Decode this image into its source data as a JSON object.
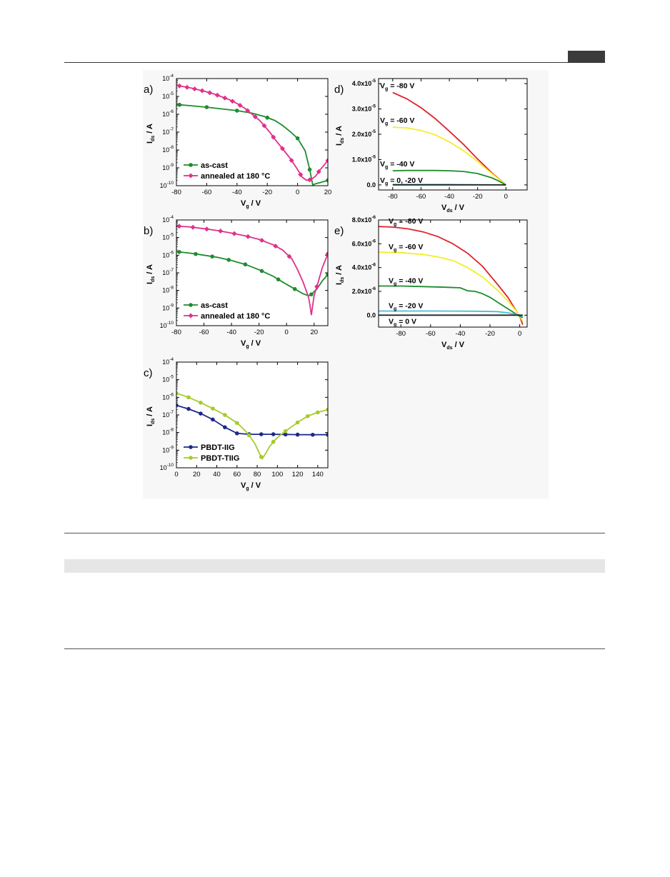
{
  "charts": {
    "a": {
      "type": "line",
      "panel_label": "a)",
      "yscale": "log",
      "xlim": [
        -80,
        20
      ],
      "ylim_exp": [
        -10,
        -4
      ],
      "xticks": [
        -80,
        -60,
        -40,
        -20,
        0,
        20
      ],
      "ylabel_main": "I",
      "ylabel_sub": "ds",
      "ylabel_tail": " / A",
      "xlabel_main": "V",
      "xlabel_sub": "g",
      "xlabel_tail": " / V",
      "legend": {
        "position": "bottom-left",
        "entries": [
          "as-cast",
          "annealed at 180 °C"
        ]
      },
      "series": [
        {
          "name": "as-cast",
          "color": "#1e8c2e",
          "marker": "circle",
          "x": [
            -80,
            -70,
            -60,
            -50,
            -40,
            -30,
            -22,
            -15,
            -10,
            -5,
            0,
            5,
            8,
            10,
            12,
            15,
            20
          ],
          "y": [
            3.5e-06,
            3e-06,
            2.5e-06,
            2e-06,
            1.6e-06,
            1.15e-06,
            7.5e-07,
            4.5e-07,
            2.4e-07,
            1.1e-07,
            4.5e-08,
            9e-09,
            8e-10,
            1.1e-10,
            1.3e-10,
            1.5e-10,
            2e-10
          ],
          "markers_x": [
            -78,
            -60,
            -40,
            -20,
            0,
            8,
            20
          ]
        },
        {
          "name": "annealed at 180 °C",
          "color": "#e0318a",
          "marker": "diamond",
          "x": [
            -80,
            -75,
            -70,
            -65,
            -60,
            -55,
            -50,
            -45,
            -40,
            -35,
            -30,
            -25,
            -22,
            -18,
            -15,
            -10,
            -5,
            0,
            3,
            6,
            9,
            12,
            15,
            18,
            20
          ],
          "y": [
            4.2e-05,
            3.5e-05,
            2.9e-05,
            2.3e-05,
            1.8e-05,
            1.35e-05,
            9.5e-06,
            6.5e-06,
            4e-06,
            2.2e-06,
            1e-06,
            4.5e-07,
            2.3e-07,
            9e-08,
            4e-08,
            1.2e-08,
            3.5e-09,
            8e-10,
            3e-10,
            2e-10,
            2.2e-10,
            3.5e-10,
            8e-10,
            1.6e-09,
            2.6e-09
          ],
          "markers_x": [
            -78,
            -73,
            -68,
            -63,
            -58,
            -53,
            -48,
            -43,
            -38,
            -33,
            -28,
            -22,
            -16,
            -10,
            -4,
            2,
            8,
            14,
            20
          ]
        }
      ]
    },
    "b": {
      "type": "line",
      "panel_label": "b)",
      "yscale": "log",
      "xlim": [
        -80,
        30
      ],
      "ylim_exp": [
        -10,
        -4
      ],
      "xticks": [
        -80,
        -60,
        -40,
        -20,
        0,
        20
      ],
      "ylabel_main": "I",
      "ylabel_sub": "ds",
      "ylabel_tail": " / A",
      "xlabel_main": "V",
      "xlabel_sub": "g",
      "xlabel_tail": " / V",
      "legend": {
        "position": "bottom-left",
        "entries": [
          "as-cast",
          "annealed at 180 °C"
        ]
      },
      "series": [
        {
          "name": "as-cast",
          "color": "#1e8c2e",
          "marker": "circle",
          "x": [
            -80,
            -70,
            -60,
            -50,
            -40,
            -30,
            -20,
            -10,
            0,
            6,
            12,
            16,
            18,
            22,
            26,
            30
          ],
          "y": [
            1.6e-06,
            1.3e-06,
            1e-06,
            7.5e-07,
            5e-07,
            3e-07,
            1.5e-07,
            6.5e-08,
            2.2e-08,
            1.2e-08,
            6.5e-09,
            5e-09,
            6e-09,
            1.2e-08,
            3.5e-08,
            8e-08
          ],
          "markers_x": [
            -78,
            -66,
            -54,
            -42,
            -30,
            -18,
            -6,
            6,
            18,
            30
          ]
        },
        {
          "name": "annealed at 180 °C",
          "color": "#e0318a",
          "marker": "diamond",
          "x": [
            -80,
            -70,
            -60,
            -50,
            -40,
            -30,
            -20,
            -10,
            -3,
            4,
            8,
            12,
            14,
            16,
            17,
            18,
            20,
            23,
            26,
            30
          ],
          "y": [
            4.5e-05,
            4e-05,
            3.2e-05,
            2.5e-05,
            1.8e-05,
            1.25e-05,
            8e-06,
            4e-06,
            2e-06,
            6e-07,
            1.5e-07,
            3e-08,
            1.1e-08,
            4e-09,
            1.5e-09,
            4e-10,
            5e-09,
            3e-08,
            2e-07,
            1.2e-06
          ],
          "markers_x": [
            -78,
            -68,
            -58,
            -48,
            -38,
            -28,
            -18,
            -8,
            2,
            22,
            30
          ]
        }
      ]
    },
    "c": {
      "type": "line",
      "panel_label": "c)",
      "yscale": "log",
      "xlim": [
        0,
        150
      ],
      "ylim_exp": [
        -10,
        -4
      ],
      "xticks": [
        0,
        20,
        40,
        60,
        80,
        100,
        120,
        140
      ],
      "ylabel_main": "I",
      "ylabel_sub": "ds",
      "ylabel_tail": " / A",
      "xlabel_main": "V",
      "xlabel_sub": "g",
      "xlabel_tail": " / V",
      "legend": {
        "position": "bottom-left",
        "entries": [
          "PBDT-IIG",
          "PBDT-TIIG"
        ]
      },
      "series": [
        {
          "name": "PBDT-IIG",
          "color": "#1b2a8a",
          "marker": "circle",
          "x": [
            0,
            12,
            24,
            36,
            48,
            60,
            72,
            84,
            96,
            108,
            120,
            135,
            150
          ],
          "y": [
            3.5e-07,
            2.2e-07,
            1.2e-07,
            5.5e-08,
            2e-08,
            9e-09,
            8e-09,
            8e-09,
            8e-09,
            7.8e-09,
            7.6e-09,
            7.5e-09,
            7.5e-09
          ],
          "markers_x": [
            0,
            12,
            24,
            36,
            48,
            60,
            72,
            84,
            96,
            108,
            120,
            135,
            150
          ]
        },
        {
          "name": "PBDT-TIIG",
          "color": "#a4cc2a",
          "marker": "circle",
          "x": [
            0,
            12,
            24,
            36,
            48,
            60,
            66,
            72,
            78,
            82,
            85,
            88,
            92,
            97,
            102,
            108,
            115,
            122,
            130,
            140,
            150
          ],
          "y": [
            1.7e-06,
            1e-06,
            5e-07,
            2.3e-07,
            1e-07,
            3.5e-08,
            1.7e-08,
            7e-09,
            2.2e-09,
            7e-10,
            3.2e-10,
            6e-10,
            1.5e-09,
            3.5e-09,
            6.5e-09,
            1.2e-08,
            2.3e-08,
            4.5e-08,
            8.5e-08,
            1.4e-07,
            2e-07
          ],
          "markers_x": [
            0,
            12,
            24,
            36,
            48,
            60,
            72,
            84,
            96,
            108,
            120,
            130,
            140,
            150
          ]
        }
      ]
    },
    "d": {
      "type": "line",
      "panel_label": "d)",
      "yscale": "linear",
      "xlim": [
        -90,
        15
      ],
      "ylim": [
        -2e-06,
        4.2e-05
      ],
      "xticks": [
        -80,
        -60,
        -40,
        -20,
        0
      ],
      "yticks": [
        0,
        1e-05,
        2e-05,
        3e-05,
        4e-05
      ],
      "ytick_labels": [
        {
          "mant": "0.0",
          "exp": ""
        },
        {
          "mant": "1.0x10",
          "exp": "-5"
        },
        {
          "mant": "2.0x10",
          "exp": "-5"
        },
        {
          "mant": "3.0x10",
          "exp": "-5"
        },
        {
          "mant": "4.0x10",
          "exp": "-5"
        }
      ],
      "ylabel_main": "I",
      "ylabel_sub": "ds",
      "ylabel_tail": " / A",
      "xlabel_main": "V",
      "xlabel_sub": "ds",
      "xlabel_tail": " / V",
      "series": [
        {
          "name": "V_g = -80 V",
          "color": "#e0242a",
          "x": [
            -80,
            -70,
            -60,
            -50,
            -40,
            -30,
            -20,
            -10,
            0
          ],
          "y": [
            3.65e-05,
            3.4e-05,
            3.05e-05,
            2.62e-05,
            2.12e-05,
            1.6e-05,
            1.02e-05,
            4.8e-06,
            0
          ],
          "label": {
            "main": "V",
            "sub": "g",
            "tail": " = -80 V"
          }
        },
        {
          "name": "V_g = -60 V",
          "color": "#f2ee2a",
          "x": [
            -80,
            -70,
            -60,
            -50,
            -40,
            -30,
            -20,
            -10,
            0
          ],
          "y": [
            2.28e-05,
            2.25e-05,
            2.15e-05,
            1.98e-05,
            1.7e-05,
            1.35e-05,
            9.2e-06,
            4.5e-06,
            0
          ],
          "label": {
            "main": "V",
            "sub": "g",
            "tail": " = -60 V"
          }
        },
        {
          "name": "V_g = -40 V",
          "color": "#1e8c2e",
          "x": [
            -80,
            -70,
            -60,
            -50,
            -40,
            -30,
            -20,
            -10,
            -5,
            0
          ],
          "y": [
            5.6e-06,
            5.7e-06,
            5.7e-06,
            5.7e-06,
            5.6e-06,
            5.3e-06,
            4.5e-06,
            2.8e-06,
            1.5e-06,
            0
          ],
          "label": {
            "main": "V",
            "sub": "g",
            "tail": " = -40 V"
          }
        },
        {
          "name": "V_g = -20 V",
          "color": "#48c0d8",
          "x": [
            -80,
            -40,
            0
          ],
          "y": [
            2e-07,
            2e-07,
            0
          ]
        },
        {
          "name": "V_g = 0 V",
          "color": "#222222",
          "x": [
            -80,
            0
          ],
          "y": [
            0,
            0
          ],
          "label": {
            "main": "V",
            "sub": "g",
            "tail": " = 0, -20 V"
          }
        }
      ]
    },
    "e": {
      "type": "line",
      "panel_label": "e)",
      "yscale": "linear",
      "xlim": [
        -95,
        5
      ],
      "ylim": [
        -1e-06,
        8e-06
      ],
      "xticks": [
        -80,
        -60,
        -40,
        -20,
        0
      ],
      "yticks": [
        0,
        2e-06,
        4e-06,
        6e-06,
        8e-06
      ],
      "ytick_labels": [
        {
          "mant": "0.0",
          "exp": ""
        },
        {
          "mant": "2.0x10",
          "exp": "-6"
        },
        {
          "mant": "4.0x10",
          "exp": "-6"
        },
        {
          "mant": "6.0x10",
          "exp": "-6"
        },
        {
          "mant": "8.0x10",
          "exp": "-6"
        }
      ],
      "ylabel_main": "I",
      "ylabel_sub": "ds",
      "ylabel_tail": " / A",
      "xlabel_main": "V",
      "xlabel_sub": "ds",
      "xlabel_tail": " / V",
      "series": [
        {
          "name": "V_g = -80 V",
          "color": "#e0242a",
          "x": [
            -95,
            -85,
            -75,
            -65,
            -55,
            -45,
            -35,
            -25,
            -15,
            -8,
            -2,
            0,
            2
          ],
          "y": [
            7.45e-06,
            7.4e-06,
            7.25e-06,
            7e-06,
            6.6e-06,
            6e-06,
            5.2e-06,
            4.1e-06,
            2.6e-06,
            1.5e-06,
            3e-07,
            -1e-07,
            -8e-07
          ],
          "label": {
            "main": "V",
            "sub": "g",
            "tail": " = -80 V"
          }
        },
        {
          "name": "V_g = -60 V",
          "color": "#f2ee2a",
          "x": [
            -95,
            -80,
            -65,
            -55,
            -45,
            -35,
            -25,
            -15,
            -8,
            -2,
            0,
            2
          ],
          "y": [
            5.3e-06,
            5.25e-06,
            5.1e-06,
            4.9e-06,
            4.6e-06,
            4e-06,
            3.2e-06,
            2.1e-06,
            1.2e-06,
            3e-07,
            -1e-07,
            -5e-07
          ],
          "label": {
            "main": "V",
            "sub": "g",
            "tail": " = -60 V"
          }
        },
        {
          "name": "V_g = -40 V",
          "color": "#1e8c2e",
          "x": [
            -95,
            -80,
            -65,
            -50,
            -40,
            -35,
            -30,
            -25,
            -20,
            -15,
            -10,
            -5,
            0,
            2
          ],
          "y": [
            2.45e-06,
            2.45e-06,
            2.4e-06,
            2.35e-06,
            2.3e-06,
            2.05e-06,
            2e-06,
            1.8e-06,
            1.5e-06,
            1.1e-06,
            7e-07,
            3e-07,
            -1e-07,
            -2e-07
          ],
          "label": {
            "main": "V",
            "sub": "g",
            "tail": " = -40 V"
          }
        },
        {
          "name": "V_g = -20 V",
          "color": "#48c0d8",
          "x": [
            -95,
            -60,
            -30,
            -15,
            -8,
            0,
            2
          ],
          "y": [
            3.5e-07,
            3.5e-07,
            3.3e-07,
            3e-07,
            2e-07,
            0,
            -1e-07
          ],
          "label": {
            "main": "V",
            "sub": "g",
            "tail": " = -20 V"
          }
        },
        {
          "name": "V_g = 0 V",
          "color": "#222222",
          "x": [
            -95,
            2
          ],
          "y": [
            0,
            0
          ],
          "label": {
            "main": "V",
            "sub": "g",
            "tail": " = 0 V"
          }
        }
      ]
    }
  }
}
